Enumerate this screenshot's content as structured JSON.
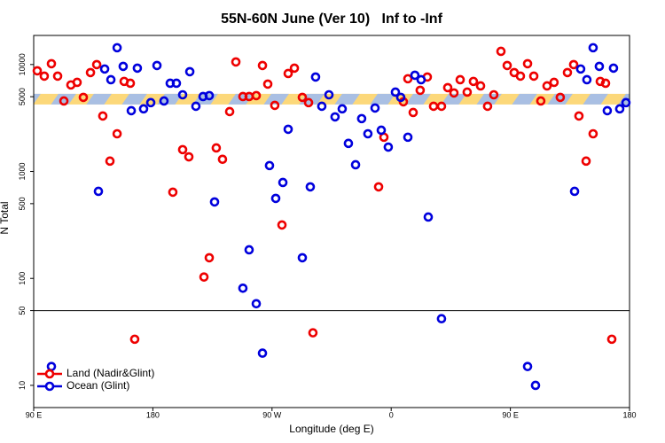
{
  "chart_data": {
    "type": "scatter",
    "title": "55N-60N June (Ver 10)   Inf to -Inf",
    "x_label": "Longitude (deg E)",
    "y_label": "N Total",
    "log_y": true,
    "xlim": [
      90,
      540
    ],
    "xticks": [
      {
        "value": 90,
        "label": "90 E"
      },
      {
        "value": 180,
        "label": "180"
      },
      {
        "value": 270,
        "label": "90 W"
      },
      {
        "value": 360,
        "label": "0"
      },
      {
        "value": 450,
        "label": "90 E"
      },
      {
        "value": 540,
        "label": "180"
      }
    ],
    "ylim": [
      6.2,
      18700
    ],
    "yticks": [
      10,
      50,
      100,
      500,
      1000,
      5000,
      10000
    ],
    "hline": 50,
    "band": [
      4230,
      5320
    ],
    "band_colors": [
      "#fcd87a",
      "#a9bfe3"
    ],
    "legend": "lower left",
    "series": [
      {
        "name": "Land (Nadir&Glint)",
        "color": "#ee0000",
        "x": [
          92.7,
          98,
          103.4,
          108.1,
          112.8,
          118.1,
          122.8,
          127.5,
          132.9,
          137.6,
          142.2,
          147.6,
          153,
          158.3,
          163,
          166.3,
          195.1,
          202.5,
          207.2,
          218.6,
          222.6,
          227.9,
          232.6,
          238,
          242.7,
          248,
          252.7,
          258.1,
          262.8,
          266.8,
          272.1,
          277.5,
          282.2,
          286.9,
          292.9,
          297.6,
          300.9,
          350.5,
          354.5,
          369.2,
          372.6,
          376.6,
          381.9,
          387.3,
          392,
          398,
          402.7,
          407.4,
          412.1,
          417.4,
          422.1,
          427.5,
          432.8,
          437.5,
          442.9,
          447.6,
          452.9,
          457.6,
          463,
          467.7,
          473,
          477.7,
          483,
          487.7,
          493.1,
          497.8,
          501.8,
          507.2,
          512.5,
          517.9,
          521.9,
          526.6
        ],
        "values": [
          8730,
          7790,
          10170,
          7790,
          4560,
          6440,
          6810,
          4930,
          8410,
          9980,
          3300,
          1250,
          2250,
          6950,
          6680,
          27,
          640,
          1600,
          1370,
          103,
          156,
          1660,
          1300,
          3630,
          10570,
          5020,
          5020,
          5120,
          9790,
          6560,
          4150,
          316,
          8240,
          9250,
          4930,
          4400,
          31,
          718,
          2090,
          4480,
          7360,
          3560,
          5740,
          7640,
          4070,
          4070,
          6080,
          5420,
          7210,
          5520,
          6950,
          6310,
          4070,
          5210,
          13280,
          9790,
          8410,
          7790,
          10170,
          7790,
          4560,
          6310,
          6810,
          4930,
          8410,
          9980,
          3300,
          1250,
          2250,
          6950,
          6680,
          27
        ]
      },
      {
        "name": "Ocean (Glint)",
        "color": "#0000dd",
        "x": [
          103.4,
          138.9,
          143.6,
          148.3,
          153,
          157.6,
          163.7,
          168.3,
          173,
          178.4,
          183.1,
          188.4,
          193.1,
          197.8,
          202.5,
          207.9,
          212.5,
          217.9,
          222.6,
          226.6,
          248,
          252.7,
          258.1,
          262.8,
          268.1,
          272.8,
          278.2,
          282.2,
          292.9,
          298.9,
          302.9,
          307.6,
          313,
          317.6,
          323,
          327.7,
          333.1,
          337.7,
          342.4,
          347.8,
          352.5,
          357.8,
          363.2,
          367.2,
          372.6,
          377.9,
          382.6,
          388,
          398,
          463,
          469,
          498.5,
          503.1,
          507.8,
          512.5,
          517.2,
          523.2,
          527.9,
          532.6,
          537.3
        ],
        "values": [
          15,
          652,
          9080,
          7210,
          14350,
          9610,
          3700,
          9250,
          3850,
          4400,
          9790,
          4560,
          6680,
          6680,
          5210,
          8570,
          4070,
          5020,
          5120,
          519,
          81,
          185,
          58,
          20,
          1135,
          560,
          789,
          2480,
          156,
          718,
          7640,
          4070,
          5210,
          3240,
          3850,
          1830,
          1155,
          3120,
          2250,
          3920,
          2430,
          1690,
          5520,
          4930,
          2090,
          7940,
          7210,
          375,
          42,
          15,
          10,
          652,
          9080,
          7210,
          14350,
          9610,
          3700,
          9250,
          3850,
          4400
        ]
      }
    ]
  }
}
